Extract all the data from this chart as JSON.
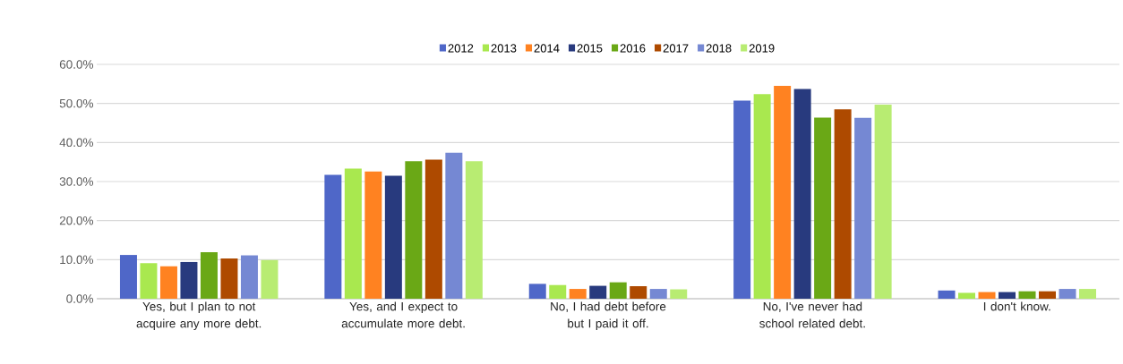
{
  "chart_data": {
    "type": "bar",
    "categories": [
      "Yes, but I plan to not acquire any more debt.",
      "Yes, and I expect to accumulate more debt.",
      "No, I had debt before but I paid it off.",
      "No, I've never had school related debt.",
      "I don't know."
    ],
    "series": [
      {
        "name": "2012",
        "color": "#4f67c8",
        "values": [
          11.2,
          31.7,
          3.8,
          50.7,
          2.1
        ]
      },
      {
        "name": "2013",
        "color": "#a9e84f",
        "values": [
          9.1,
          33.3,
          3.5,
          52.4,
          1.5
        ]
      },
      {
        "name": "2014",
        "color": "#ff8221",
        "values": [
          8.3,
          32.6,
          2.5,
          54.5,
          1.7
        ]
      },
      {
        "name": "2015",
        "color": "#283a7e",
        "values": [
          9.4,
          31.5,
          3.3,
          53.7,
          1.7
        ]
      },
      {
        "name": "2016",
        "color": "#6aa816",
        "values": [
          11.9,
          35.2,
          4.2,
          46.4,
          1.9
        ]
      },
      {
        "name": "2017",
        "color": "#ae4a00",
        "values": [
          10.3,
          35.6,
          3.2,
          48.5,
          1.9
        ]
      },
      {
        "name": "2018",
        "color": "#7588d3",
        "values": [
          11.1,
          37.4,
          2.5,
          46.3,
          2.5
        ]
      },
      {
        "name": "2019",
        "color": "#b8ec72",
        "values": [
          9.9,
          35.2,
          2.4,
          49.7,
          2.5
        ]
      }
    ],
    "ylim": [
      0,
      60
    ],
    "yticks": [
      {
        "value": 0,
        "label": "0.0%"
      },
      {
        "value": 10,
        "label": "10.0%"
      },
      {
        "value": 20,
        "label": "20.0%"
      },
      {
        "value": 30,
        "label": "30.0%"
      },
      {
        "value": 40,
        "label": "40.0%"
      },
      {
        "value": 50,
        "label": "50.0%"
      },
      {
        "value": 60,
        "label": "60.0%"
      }
    ],
    "grid": "y",
    "legend": "top"
  }
}
